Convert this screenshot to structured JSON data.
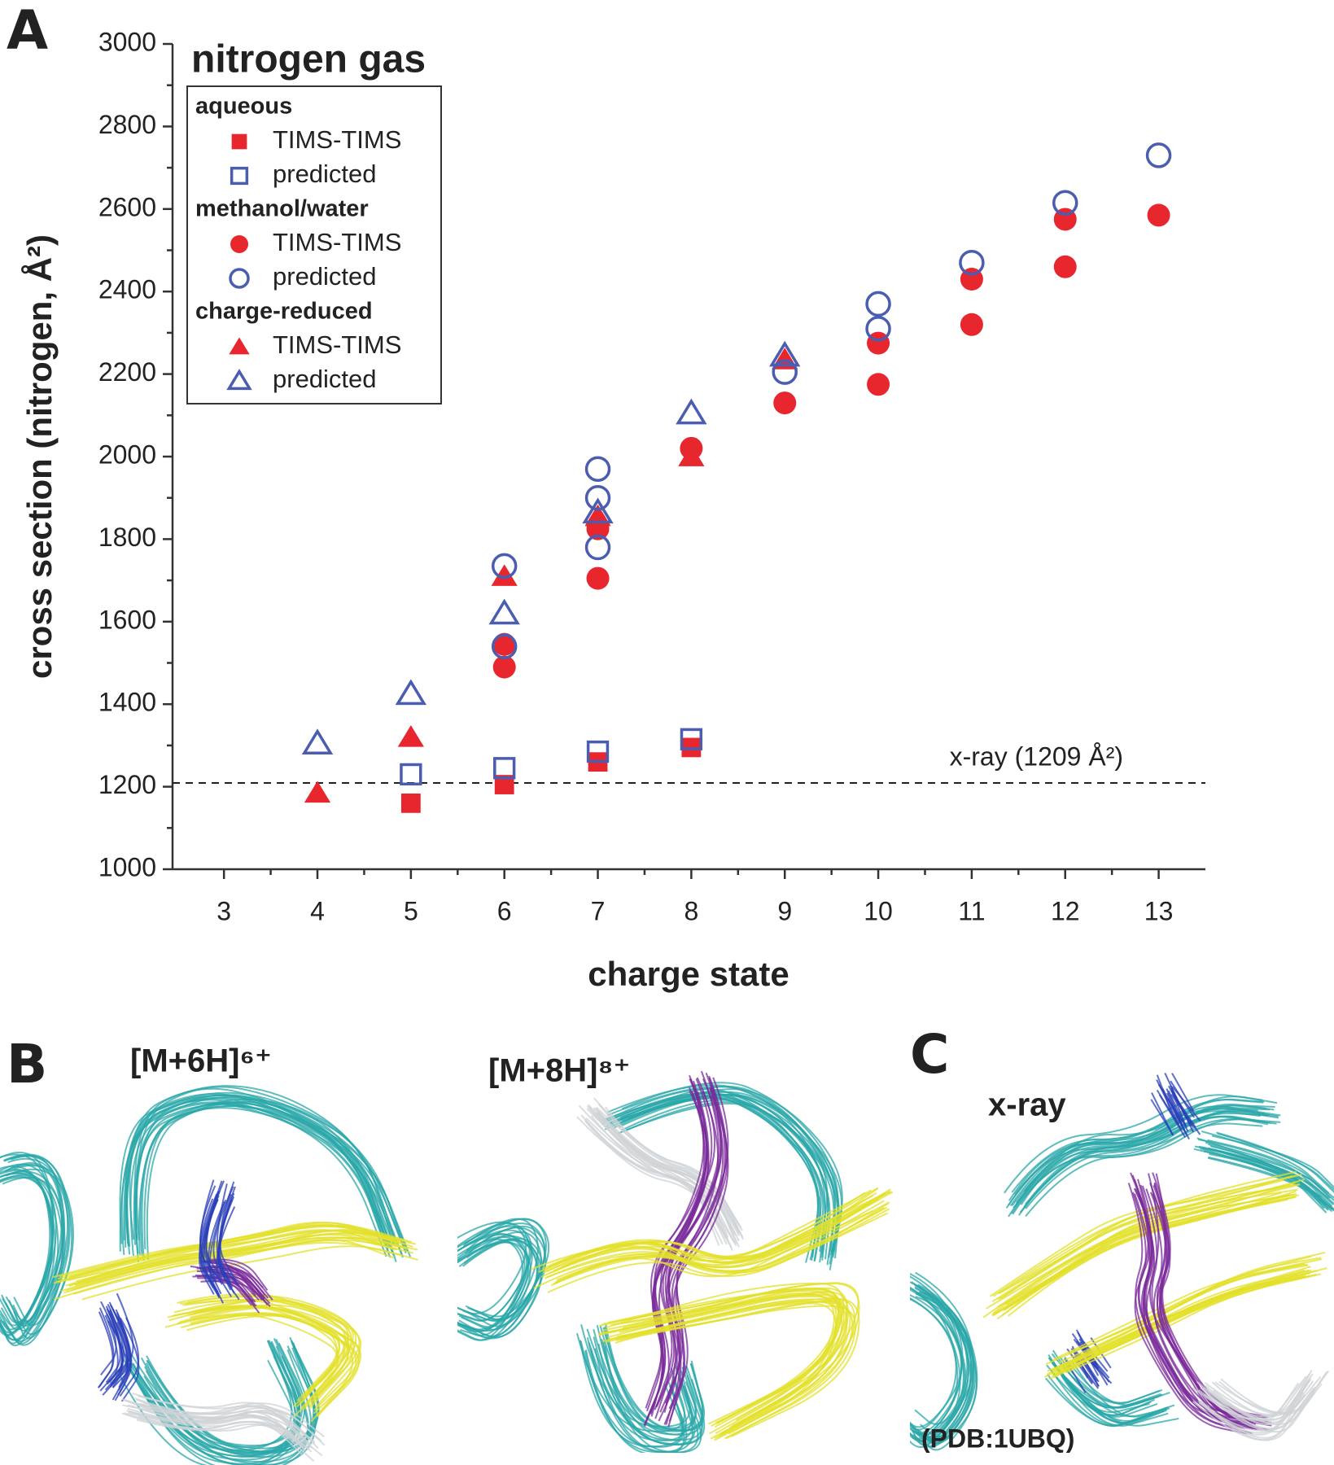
{
  "chart_data": {
    "type": "scatter",
    "title": "nitrogen gas",
    "x_label": "charge state",
    "y_label": "cross section (nitrogen, Å²)",
    "xlim": [
      2.45,
      13.5
    ],
    "xticks": [
      3,
      4,
      5,
      6,
      7,
      8,
      9,
      10,
      11,
      12,
      13
    ],
    "ylim": [
      1000,
      3000
    ],
    "yticks": [
      1000,
      1200,
      1400,
      1600,
      1800,
      2000,
      2200,
      2400,
      2600,
      2800,
      3000
    ],
    "grid": false,
    "legend": "upper left",
    "reference_line": {
      "value": 1209,
      "label": "x-ray (1209 Å²)"
    },
    "series": [
      {
        "group": "aqueous",
        "name": "TIMS-TIMS",
        "marker": "square",
        "filled": true,
        "color": "#e8262d",
        "x": [
          5,
          6,
          7,
          8
        ],
        "y": [
          1160,
          1205,
          1260,
          1295
        ]
      },
      {
        "group": "aqueous",
        "name": "predicted",
        "marker": "square",
        "filled": false,
        "color": "#4a5db0",
        "x": [
          5,
          6,
          7,
          8
        ],
        "y": [
          1230,
          1245,
          1285,
          1315
        ]
      },
      {
        "group": "methanol/water",
        "name": "TIMS-TIMS",
        "marker": "circle",
        "filled": true,
        "color": "#e8262d",
        "x": [
          6,
          6,
          7,
          7,
          8,
          9,
          10,
          10,
          11,
          11,
          12,
          12,
          13
        ],
        "y": [
          1490,
          1545,
          1705,
          1825,
          2020,
          2130,
          2175,
          2275,
          2320,
          2430,
          2460,
          2575,
          2585
        ]
      },
      {
        "group": "methanol/water",
        "name": "predicted",
        "marker": "circle",
        "filled": false,
        "color": "#4a5db0",
        "x": [
          6,
          6,
          7,
          7,
          7,
          9,
          10,
          10,
          11,
          12,
          13
        ],
        "y": [
          1540,
          1735,
          1780,
          1900,
          1970,
          2205,
          2310,
          2370,
          2470,
          2615,
          2730
        ]
      },
      {
        "group": "charge-reduced",
        "name": "TIMS-TIMS",
        "marker": "triangle",
        "filled": true,
        "color": "#e8262d",
        "x": [
          4,
          5,
          6,
          7,
          8,
          9
        ],
        "y": [
          1185,
          1320,
          1710,
          1855,
          2000,
          2235
        ]
      },
      {
        "group": "charge-reduced",
        "name": "predicted",
        "marker": "triangle",
        "filled": false,
        "color": "#4a5db0",
        "x": [
          4,
          5,
          6,
          7,
          8,
          9
        ],
        "y": [
          1305,
          1425,
          1620,
          1865,
          2105,
          2245
        ]
      }
    ]
  },
  "figure": {
    "panel_labels": [
      "A",
      "B",
      "C"
    ],
    "structures": [
      {
        "label": "[M+6H]⁶⁺"
      },
      {
        "label": "[M+8H]⁸⁺"
      },
      {
        "label": "x-ray",
        "caption": "(PDB:1UBQ)"
      }
    ]
  }
}
